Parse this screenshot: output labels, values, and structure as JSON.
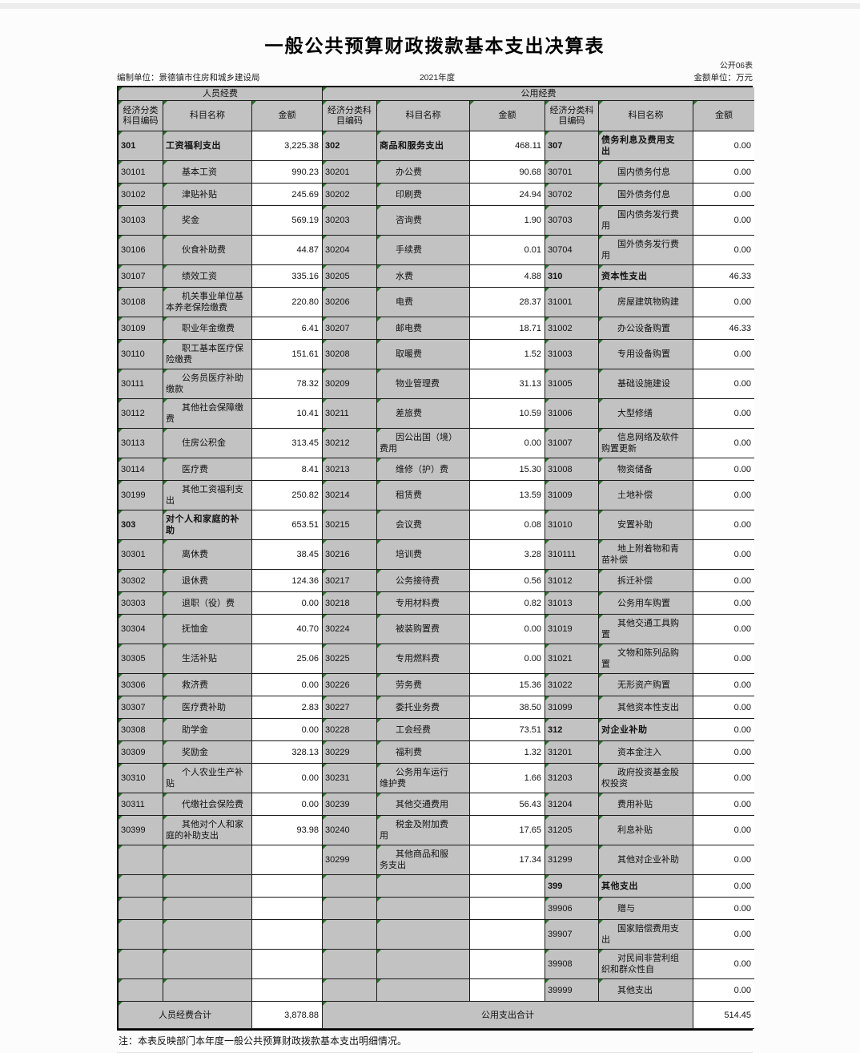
{
  "title": "一般公共预算财政拨款基本支出决算表",
  "meta": {
    "sheet_label": "公开06表",
    "prepared_by": "编制单位：景德镇市住房和城乡建设局",
    "fiscal_year": "2021年度",
    "amount_unit": "金额单位：万元"
  },
  "colors": {
    "cell_gray": "#c2c2c2",
    "flag_green": "#267326",
    "border": "#1a1a1a"
  },
  "table": {
    "group_headers": [
      "人员经费",
      "公用经费"
    ],
    "column_headers": [
      "经济分类科目编码",
      "科目名称",
      "金额",
      "经济分类科目编码",
      "科目名称",
      "金额",
      "经济分类科目编码",
      "科目名称",
      "金额"
    ],
    "rows": [
      [
        {
          "code": "301",
          "name": "工资福利支出",
          "amount": "3,225.38",
          "bold": true
        },
        {
          "code": "302",
          "name": "商品和服务支出",
          "amount": "468.11",
          "bold": true
        },
        {
          "code": "307",
          "name": "债务利息及费用支出",
          "amount": "0.00",
          "bold": true
        }
      ],
      [
        {
          "code": "30101",
          "name": "基本工资",
          "amount": "990.23"
        },
        {
          "code": "30201",
          "name": "办公费",
          "amount": "90.68"
        },
        {
          "code": "30701",
          "name": "国内债务付息",
          "amount": "0.00"
        }
      ],
      [
        {
          "code": "30102",
          "name": "津贴补贴",
          "amount": "245.69"
        },
        {
          "code": "30202",
          "name": "印刷费",
          "amount": "24.94"
        },
        {
          "code": "30702",
          "name": "国外债务付息",
          "amount": "0.00"
        }
      ],
      [
        {
          "code": "30103",
          "name": "奖金",
          "amount": "569.19"
        },
        {
          "code": "30203",
          "name": "咨询费",
          "amount": "1.90"
        },
        {
          "code": "30703",
          "name": "国内债务发行费用",
          "amount": "0.00"
        }
      ],
      [
        {
          "code": "30106",
          "name": "伙食补助费",
          "amount": "44.87"
        },
        {
          "code": "30204",
          "name": "手续费",
          "amount": "0.01"
        },
        {
          "code": "30704",
          "name": "国外债务发行费用",
          "amount": "0.00"
        }
      ],
      [
        {
          "code": "30107",
          "name": "绩效工资",
          "amount": "335.16"
        },
        {
          "code": "30205",
          "name": "水费",
          "amount": "4.88"
        },
        {
          "code": "310",
          "name": "资本性支出",
          "amount": "46.33",
          "bold": true
        }
      ],
      [
        {
          "code": "30108",
          "name": "机关事业单位基本养老保险缴费",
          "amount": "220.80"
        },
        {
          "code": "30206",
          "name": "电费",
          "amount": "28.37"
        },
        {
          "code": "31001",
          "name": "房屋建筑物购建",
          "amount": "0.00"
        }
      ],
      [
        {
          "code": "30109",
          "name": "职业年金缴费",
          "amount": "6.41"
        },
        {
          "code": "30207",
          "name": "邮电费",
          "amount": "18.71"
        },
        {
          "code": "31002",
          "name": "办公设备购置",
          "amount": "46.33"
        }
      ],
      [
        {
          "code": "30110",
          "name": "职工基本医疗保险缴费",
          "amount": "151.61"
        },
        {
          "code": "30208",
          "name": "取暖费",
          "amount": "1.52"
        },
        {
          "code": "31003",
          "name": "专用设备购置",
          "amount": "0.00"
        }
      ],
      [
        {
          "code": "30111",
          "name": "公务员医疗补助缴款",
          "amount": "78.32"
        },
        {
          "code": "30209",
          "name": "物业管理费",
          "amount": "31.13"
        },
        {
          "code": "31005",
          "name": "基础设施建设",
          "amount": "0.00"
        }
      ],
      [
        {
          "code": "30112",
          "name": "其他社会保障缴费",
          "amount": "10.41"
        },
        {
          "code": "30211",
          "name": "差旅费",
          "amount": "10.59"
        },
        {
          "code": "31006",
          "name": "大型修缮",
          "amount": "0.00"
        }
      ],
      [
        {
          "code": "30113",
          "name": "住房公积金",
          "amount": "313.45"
        },
        {
          "code": "30212",
          "name": "因公出国（境）费用",
          "amount": "0.00"
        },
        {
          "code": "31007",
          "name": "信息网络及软件购置更新",
          "amount": "0.00"
        }
      ],
      [
        {
          "code": "30114",
          "name": "医疗费",
          "amount": "8.41"
        },
        {
          "code": "30213",
          "name": "维修（护）费",
          "amount": "15.30"
        },
        {
          "code": "31008",
          "name": "物资储备",
          "amount": "0.00"
        }
      ],
      [
        {
          "code": "30199",
          "name": "其他工资福利支出",
          "amount": "250.82"
        },
        {
          "code": "30214",
          "name": "租赁费",
          "amount": "13.59"
        },
        {
          "code": "31009",
          "name": "土地补偿",
          "amount": "0.00"
        }
      ],
      [
        {
          "code": "303",
          "name": "对个人和家庭的补助",
          "amount": "653.51",
          "bold": true
        },
        {
          "code": "30215",
          "name": "会议费",
          "amount": "0.08"
        },
        {
          "code": "31010",
          "name": "安置补助",
          "amount": "0.00"
        }
      ],
      [
        {
          "code": "30301",
          "name": "离休费",
          "amount": "38.45"
        },
        {
          "code": "30216",
          "name": "培训费",
          "amount": "3.28"
        },
        {
          "code": "310111",
          "name": "地上附着物和青苗补偿",
          "amount": "0.00"
        }
      ],
      [
        {
          "code": "30302",
          "name": "退休费",
          "amount": "124.36"
        },
        {
          "code": "30217",
          "name": "公务接待费",
          "amount": "0.56"
        },
        {
          "code": "31012",
          "name": "拆迁补偿",
          "amount": "0.00"
        }
      ],
      [
        {
          "code": "30303",
          "name": "退职（役）费",
          "amount": "0.00"
        },
        {
          "code": "30218",
          "name": "专用材料费",
          "amount": "0.82"
        },
        {
          "code": "31013",
          "name": "公务用车购置",
          "amount": "0.00"
        }
      ],
      [
        {
          "code": "30304",
          "name": "抚恤金",
          "amount": "40.70"
        },
        {
          "code": "30224",
          "name": "被装购置费",
          "amount": "0.00"
        },
        {
          "code": "31019",
          "name": "其他交通工具购置",
          "amount": "0.00"
        }
      ],
      [
        {
          "code": "30305",
          "name": "生活补贴",
          "amount": "25.06"
        },
        {
          "code": "30225",
          "name": "专用燃料费",
          "amount": "0.00"
        },
        {
          "code": "31021",
          "name": "文物和陈列品购置",
          "amount": "0.00"
        }
      ],
      [
        {
          "code": "30306",
          "name": "救济费",
          "amount": "0.00"
        },
        {
          "code": "30226",
          "name": "劳务费",
          "amount": "15.36"
        },
        {
          "code": "31022",
          "name": "无形资产购置",
          "amount": "0.00"
        }
      ],
      [
        {
          "code": "30307",
          "name": "医疗费补助",
          "amount": "2.83"
        },
        {
          "code": "30227",
          "name": "委托业务费",
          "amount": "38.50"
        },
        {
          "code": "31099",
          "name": "其他资本性支出",
          "amount": "0.00"
        }
      ],
      [
        {
          "code": "30308",
          "name": "助学金",
          "amount": "0.00"
        },
        {
          "code": "30228",
          "name": "工会经费",
          "amount": "73.51"
        },
        {
          "code": "312",
          "name": "对企业补助",
          "amount": "0.00",
          "bold": true
        }
      ],
      [
        {
          "code": "30309",
          "name": "奖励金",
          "amount": "328.13"
        },
        {
          "code": "30229",
          "name": "福利费",
          "amount": "1.32"
        },
        {
          "code": "31201",
          "name": "资本金注入",
          "amount": "0.00"
        }
      ],
      [
        {
          "code": "30310",
          "name": "个人农业生产补贴",
          "amount": "0.00"
        },
        {
          "code": "30231",
          "name": "公务用车运行维护费",
          "amount": "1.66"
        },
        {
          "code": "31203",
          "name": "政府投资基金股权投资",
          "amount": "0.00"
        }
      ],
      [
        {
          "code": "30311",
          "name": "代缴社会保险费",
          "amount": "0.00"
        },
        {
          "code": "30239",
          "name": "其他交通费用",
          "amount": "56.43"
        },
        {
          "code": "31204",
          "name": "费用补贴",
          "amount": "0.00"
        }
      ],
      [
        {
          "code": "30399",
          "name": "其他对个人和家庭的补助支出",
          "amount": "93.98"
        },
        {
          "code": "30240",
          "name": "税金及附加费用",
          "amount": "17.65"
        },
        {
          "code": "31205",
          "name": "利息补贴",
          "amount": "0.00"
        }
      ],
      [
        {
          "code": "",
          "name": "",
          "amount": ""
        },
        {
          "code": "30299",
          "name": "其他商品和服务支出",
          "amount": "17.34"
        },
        {
          "code": "31299",
          "name": "其他对企业补助",
          "amount": "0.00"
        }
      ],
      [
        {
          "code": "",
          "name": "",
          "amount": ""
        },
        {
          "code": "",
          "name": "",
          "amount": ""
        },
        {
          "code": "399",
          "name": "其他支出",
          "amount": "0.00",
          "bold": true
        }
      ],
      [
        {
          "code": "",
          "name": "",
          "amount": ""
        },
        {
          "code": "",
          "name": "",
          "amount": ""
        },
        {
          "code": "39906",
          "name": "赠与",
          "amount": "0.00"
        }
      ],
      [
        {
          "code": "",
          "name": "",
          "amount": ""
        },
        {
          "code": "",
          "name": "",
          "amount": ""
        },
        {
          "code": "39907",
          "name": "国家赔偿费用支出",
          "amount": "0.00"
        }
      ],
      [
        {
          "code": "",
          "name": "",
          "amount": ""
        },
        {
          "code": "",
          "name": "",
          "amount": ""
        },
        {
          "code": "39908",
          "name": "对民间非营利组织和群众性自",
          "amount": "0.00"
        }
      ],
      [
        {
          "code": "",
          "name": "",
          "amount": ""
        },
        {
          "code": "",
          "name": "",
          "amount": ""
        },
        {
          "code": "39999",
          "name": "其他支出",
          "amount": "0.00"
        }
      ]
    ],
    "footer": {
      "personnel_total_label": "人员经费合计",
      "personnel_total": "3,878.88",
      "public_total_label": "公用支出合计",
      "public_total": "514.45"
    }
  },
  "note": "注：本表反映部门本年度一般公共预算财政拨款基本支出明细情况。"
}
